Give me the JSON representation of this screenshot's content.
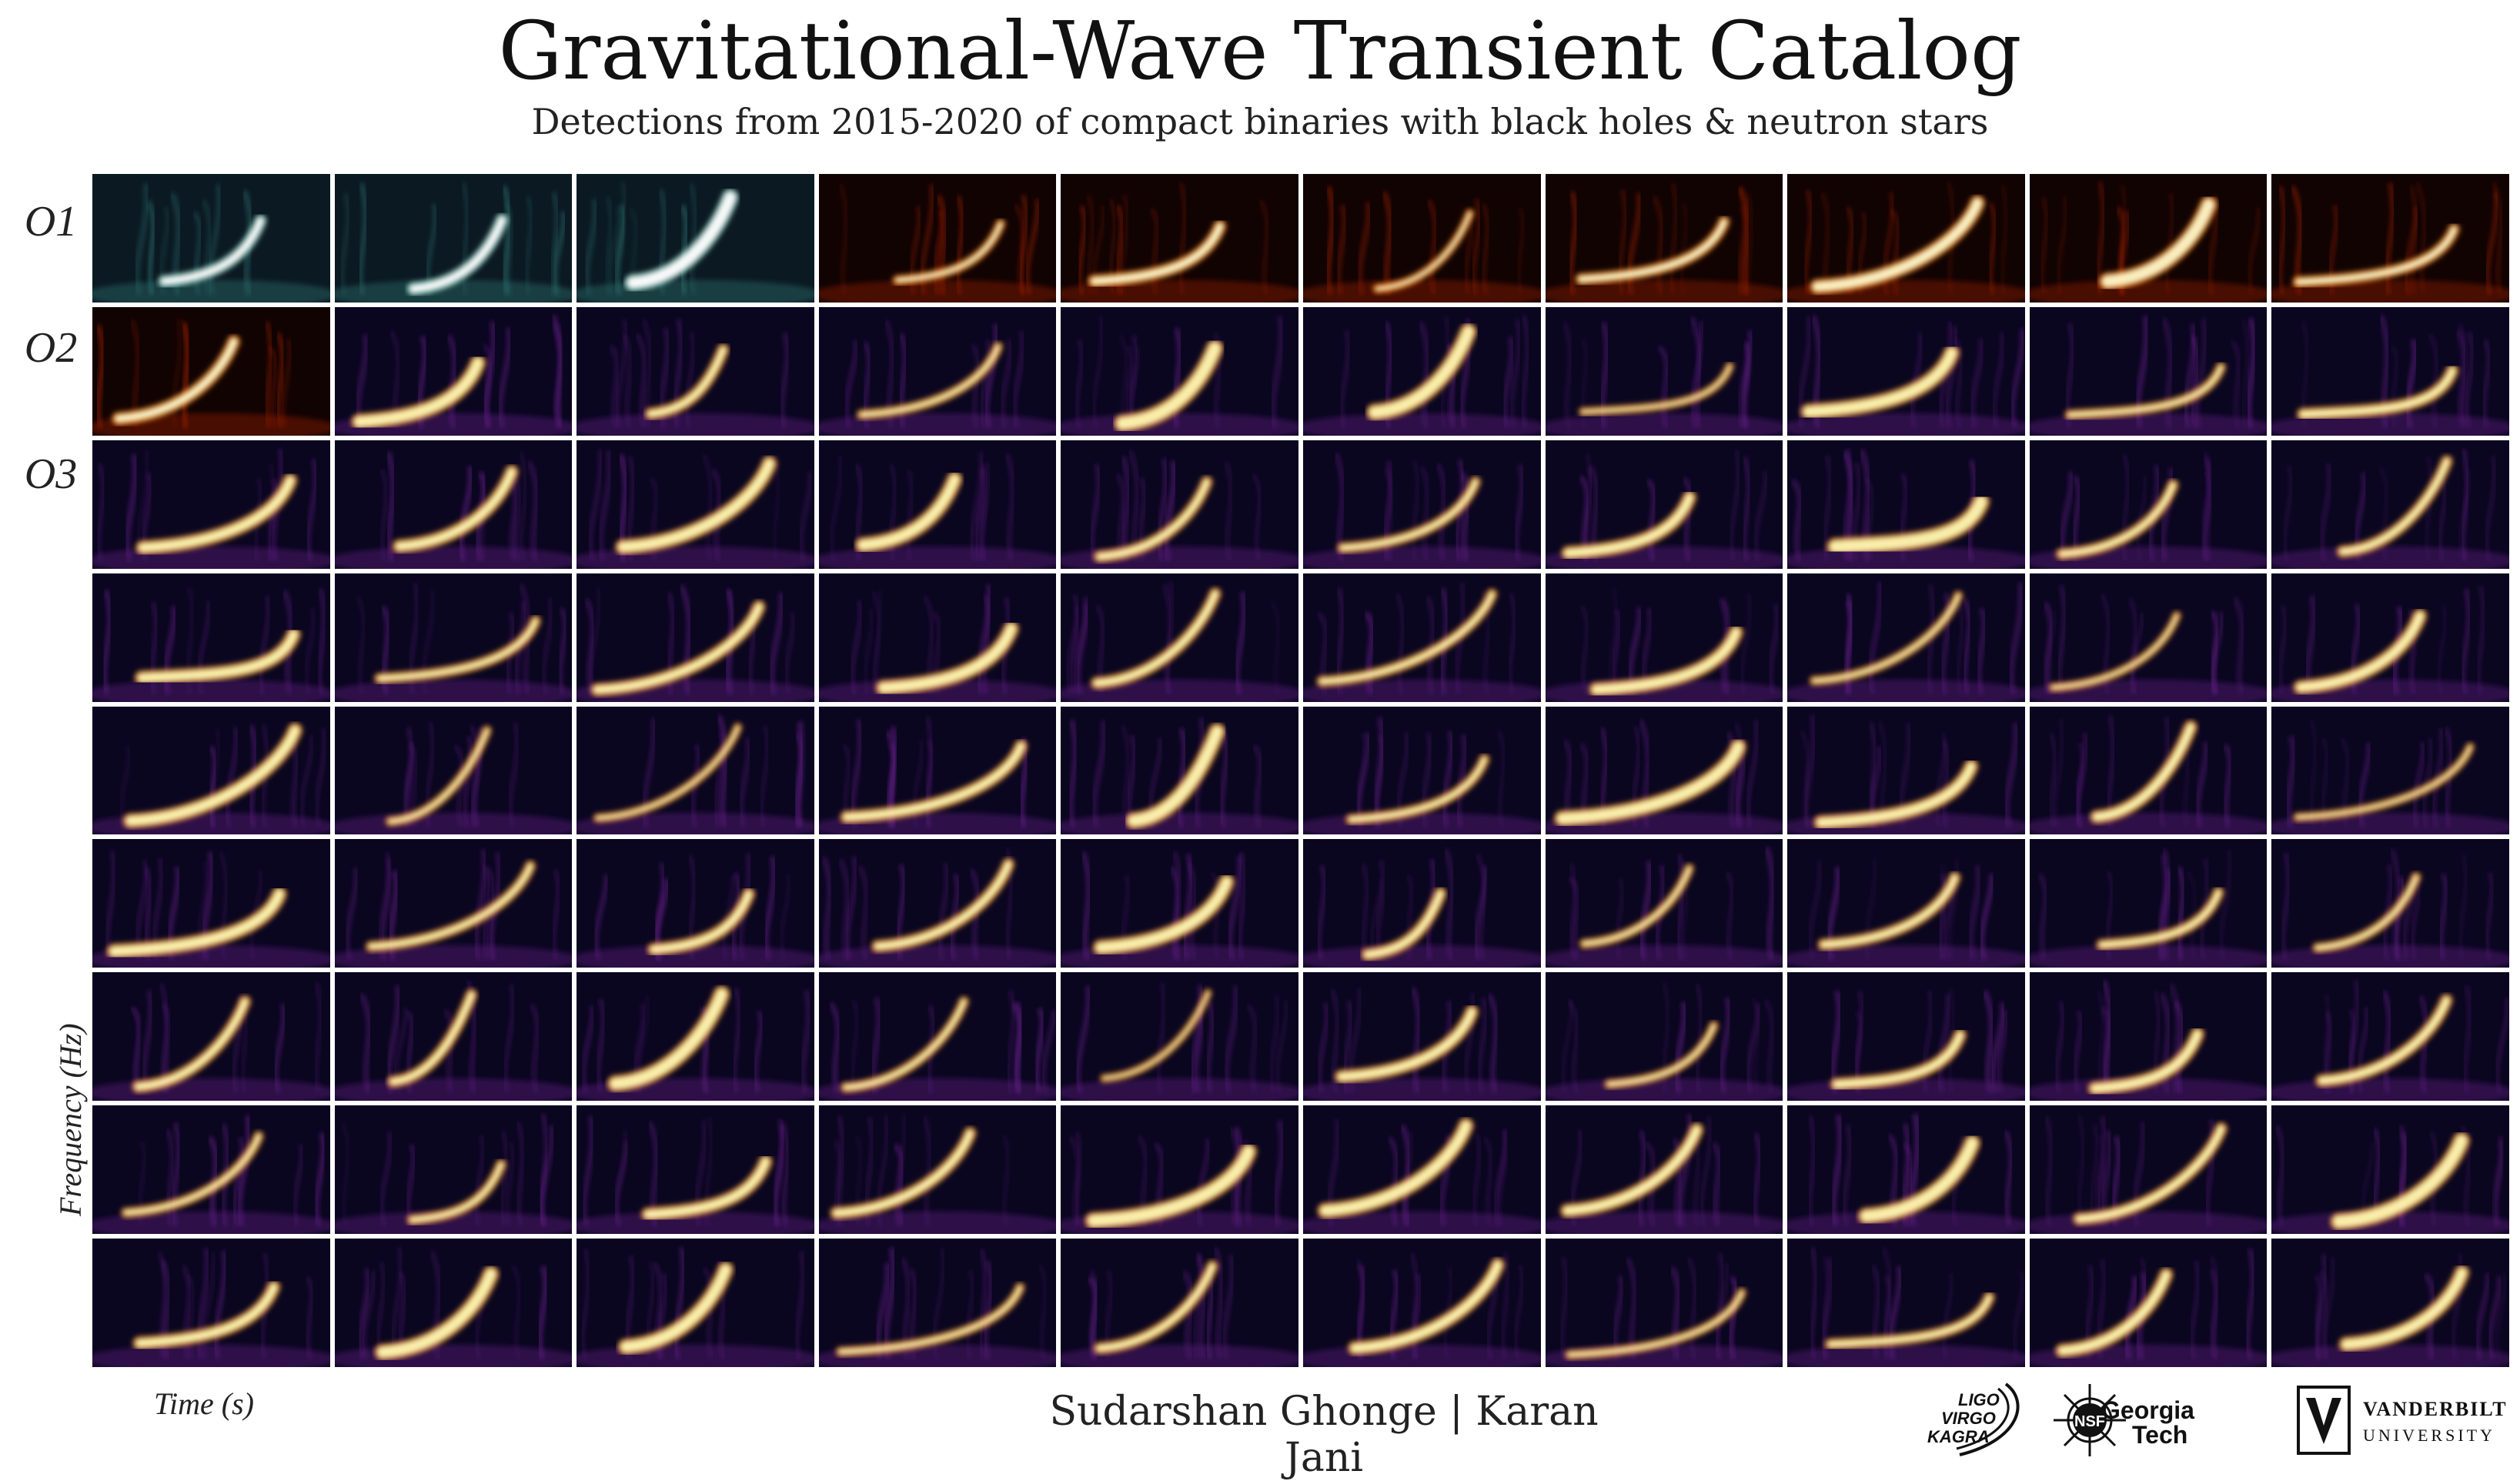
{
  "title": "Gravitational-Wave Transient Catalog",
  "subtitle": "Detections from 2015-2020 of compact binaries with black holes & neutron stars",
  "runs": [
    {
      "label": "O1",
      "row": 0
    },
    {
      "label": "O2",
      "row": 1
    },
    {
      "label": "O3",
      "row": 2
    }
  ],
  "axes": {
    "y_label": "Frequency (Hz)",
    "x_label": "Time (s)"
  },
  "authors": "Sudarshan Ghonge | Karan Jani",
  "logos": {
    "ligo": [
      "LIGO",
      "VIRGO",
      "KAGRA"
    ],
    "nsf": "NSF",
    "georgia_tech": [
      "Georgia",
      "Tech"
    ],
    "vanderbilt": [
      "VANDERBILT",
      "UNIVERSITY"
    ]
  },
  "palettes": {
    "green": [
      "#0b1a22",
      "#2a6a6a",
      "#9fe0d0",
      "#ffffff"
    ],
    "red": [
      "#120303",
      "#8a1a05",
      "#ff8a1a",
      "#fff6c8"
    ],
    "purple": [
      "#0a0620",
      "#5a1a7a",
      "#ff9a2a",
      "#fff6b0"
    ]
  },
  "tile_rows": [
    [
      "green",
      "green",
      "green",
      "red",
      "red",
      "red",
      "red",
      "red",
      "red",
      "red"
    ],
    [
      "red",
      "purple",
      "purple",
      "purple",
      "purple",
      "purple",
      "purple",
      "purple",
      "purple",
      "purple"
    ],
    [
      "purple",
      "purple",
      "purple",
      "purple",
      "purple",
      "purple",
      "purple",
      "purple",
      "purple",
      "purple"
    ],
    [
      "purple",
      "purple",
      "purple",
      "purple",
      "purple",
      "purple",
      "purple",
      "purple",
      "purple",
      "purple"
    ],
    [
      "purple",
      "purple",
      "purple",
      "purple",
      "purple",
      "purple",
      "purple",
      "purple",
      "purple",
      "purple"
    ],
    [
      "purple",
      "purple",
      "purple",
      "purple",
      "purple",
      "purple",
      "purple",
      "purple",
      "purple",
      "purple"
    ],
    [
      "purple",
      "purple",
      "purple",
      "purple",
      "purple",
      "purple",
      "purple",
      "purple",
      "purple",
      "purple"
    ],
    [
      "purple",
      "purple",
      "purple",
      "purple",
      "purple",
      "purple",
      "purple",
      "purple",
      "purple",
      "purple"
    ],
    [
      "purple",
      "purple",
      "purple",
      "purple",
      "purple",
      "purple",
      "purple",
      "purple",
      "purple",
      "purple"
    ]
  ]
}
